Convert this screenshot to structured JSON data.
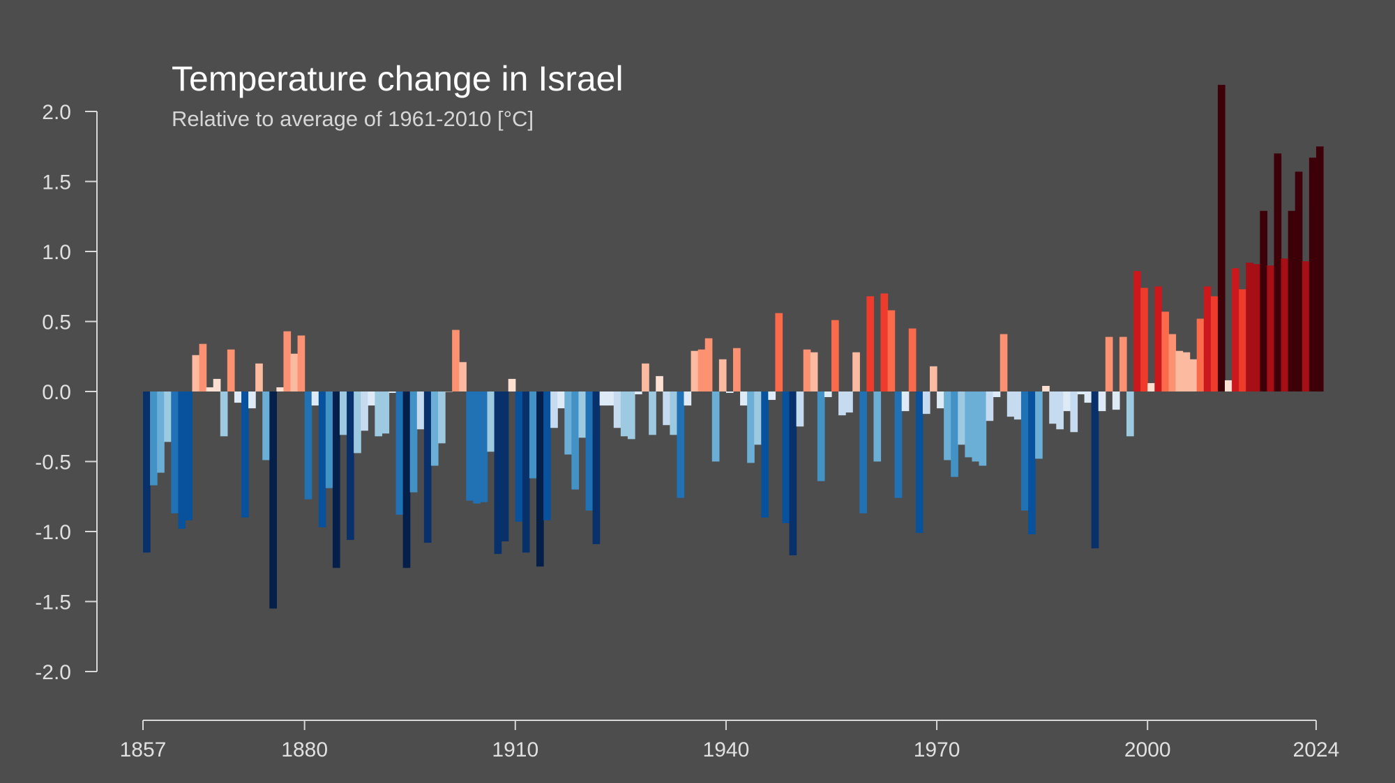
{
  "chart_data": {
    "type": "bar",
    "title": "Temperature change in Israel",
    "subtitle": "Relative to average of 1961-2010  [°C]",
    "xlabel": "",
    "ylabel": "",
    "first_year": 1857,
    "last_year": 2024,
    "ylim": [
      -2.0,
      2.2
    ],
    "yticks": [
      "2.0",
      "1.5",
      "1.0",
      "0.5",
      "0.0",
      "-0.5",
      "-1.0",
      "-1.5",
      "-2.0"
    ],
    "ytick_values": [
      2.0,
      1.5,
      1.0,
      0.5,
      0.0,
      -0.5,
      -1.0,
      -1.5,
      -2.0
    ],
    "xticks": [
      "1857",
      "1880",
      "1910",
      "1940",
      "1970",
      "2000",
      "2024"
    ],
    "xtick_values": [
      1857,
      1880,
      1910,
      1940,
      1970,
      2000,
      2024
    ],
    "grid": false,
    "legend": "none",
    "values": [
      -1.15,
      -0.67,
      -0.58,
      -0.36,
      -0.87,
      -0.98,
      -0.92,
      0.26,
      0.34,
      0.03,
      0.09,
      -0.32,
      0.3,
      -0.08,
      -0.9,
      -0.12,
      0.2,
      -0.49,
      -1.55,
      0.03,
      0.43,
      0.27,
      0.4,
      -0.77,
      -0.1,
      -0.97,
      -0.69,
      -1.26,
      -0.31,
      -1.06,
      -0.44,
      -0.28,
      -0.1,
      -0.32,
      -0.3,
      -0.01,
      -0.88,
      -1.26,
      -0.72,
      -0.27,
      -1.08,
      -0.53,
      -0.37,
      0.0,
      0.44,
      0.21,
      -0.78,
      -0.8,
      -0.79,
      -0.43,
      -1.16,
      -1.07,
      0.09,
      -0.93,
      -1.15,
      -0.62,
      -1.25,
      -0.92,
      -0.26,
      -0.12,
      -0.45,
      -0.7,
      -0.33,
      -0.85,
      -1.09,
      -0.1,
      -0.1,
      -0.26,
      -0.32,
      -0.34,
      -0.02,
      0.2,
      -0.31,
      0.11,
      -0.24,
      -0.31,
      -0.76,
      -0.1,
      0.29,
      0.3,
      0.38,
      -0.5,
      0.23,
      -0.01,
      0.31,
      -0.1,
      -0.51,
      -0.38,
      -0.9,
      -0.06,
      0.56,
      -0.94,
      -1.17,
      -0.25,
      0.3,
      0.28,
      -0.64,
      -0.04,
      0.51,
      -0.17,
      -0.15,
      0.28,
      -0.87,
      0.68,
      -0.5,
      0.7,
      0.58,
      -0.76,
      -0.14,
      0.45,
      -1.01,
      -0.16,
      0.18,
      -0.12,
      -0.49,
      -0.61,
      -0.38,
      -0.47,
      -0.5,
      -0.53,
      -0.21,
      -0.04,
      0.41,
      -0.18,
      -0.2,
      -0.85,
      -1.02,
      -0.48,
      0.04,
      -0.23,
      -0.27,
      -0.14,
      -0.29,
      -0.02,
      -0.08,
      -1.12,
      -0.14,
      0.39,
      -0.13,
      0.39,
      -0.32,
      0.86,
      0.74,
      0.06,
      0.75,
      0.57,
      0.41,
      0.29,
      0.28,
      0.23,
      0.52,
      0.75,
      0.68,
      2.19,
      0.08,
      0.88,
      0.73,
      0.92,
      0.91,
      1.29,
      0.9,
      1.7,
      0.95,
      1.29,
      1.57,
      0.93,
      1.67,
      1.75
    ]
  }
}
